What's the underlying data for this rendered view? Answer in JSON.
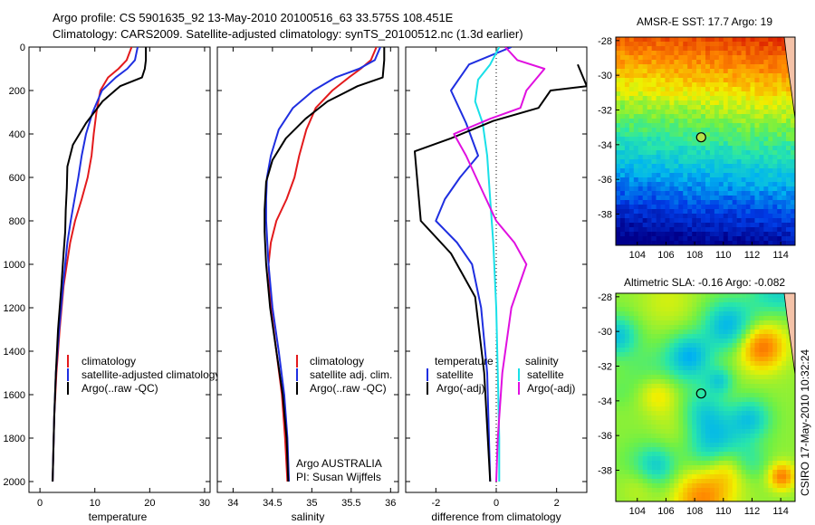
{
  "title": {
    "line1": "Argo profile: CS 5901635_92 13-May-2010 20100516_63 33.575S 108.451E",
    "line2": "Climatology: CARS2009. Satellite-adjusted climatology: synTS_20100512.nc (1.3d earlier)"
  },
  "credit": "CSIRO 17-May-2010 10:32:24",
  "colors": {
    "climatology": "#e31a1c",
    "satellite": "#1f2fe0",
    "argo": "#000000",
    "salinity_diff": "#e010e0",
    "salinity_sat": "#19e0e8"
  },
  "chart_data": [
    {
      "type": "line",
      "xlabel": "temperature",
      "xlim": [
        -2,
        31
      ],
      "ylim": [
        0,
        2050
      ],
      "xticks": [
        "0",
        "10",
        "20",
        "30"
      ],
      "yticks": [
        "0",
        "200",
        "400",
        "600",
        "800",
        "1000",
        "1200",
        "1400",
        "1600",
        "1800",
        "2000"
      ],
      "legend": [
        "climatology",
        "satellite-adjusted climatology",
        "Argo(..raw -QC)"
      ],
      "series": [
        {
          "name": "climatology",
          "x": [
            16.7,
            15.8,
            14.3,
            12.4,
            11.0,
            10.3,
            9.8,
            9.4,
            8.7,
            7.6,
            6.4,
            5.5,
            4.9,
            4.3,
            3.6,
            3.0,
            2.6,
            2.4,
            2.3
          ],
          "y": [
            0,
            60,
            100,
            140,
            200,
            300,
            400,
            500,
            600,
            700,
            800,
            900,
            1000,
            1100,
            1300,
            1500,
            1700,
            1900,
            2000
          ]
        },
        {
          "name": "satellite-adjusted climatology",
          "x": [
            17.8,
            17.3,
            15.9,
            13.8,
            11.3,
            9.6,
            8.4,
            7.6,
            7.0,
            6.3,
            5.6,
            5.0,
            4.6,
            4.2,
            3.5,
            2.9,
            2.6,
            2.4,
            2.3
          ],
          "y": [
            0,
            60,
            100,
            140,
            200,
            300,
            400,
            500,
            600,
            700,
            800,
            900,
            1000,
            1100,
            1300,
            1500,
            1700,
            1900,
            2000
          ]
        },
        {
          "name": "Argo(..raw -QC)",
          "x": [
            19.3,
            19.3,
            19.1,
            18.6,
            14.6,
            11.4,
            8.4,
            6.0,
            5.0,
            4.9,
            4.7,
            4.6,
            4.3,
            3.9,
            3.3,
            2.9,
            2.6,
            2.4,
            2.3
          ],
          "y": [
            0,
            60,
            100,
            140,
            180,
            250,
            350,
            450,
            550,
            650,
            750,
            850,
            950,
            1100,
            1300,
            1500,
            1700,
            1900,
            2000
          ]
        }
      ]
    },
    {
      "type": "line",
      "xlabel": "salinity",
      "xlim": [
        33.8,
        36.1
      ],
      "ylim": [
        0,
        2050
      ],
      "xticks": [
        "34",
        "34.5",
        "35",
        "35.5",
        "36"
      ],
      "legend": [
        "climatology",
        "satellite adj. clim.",
        "Argo(..raw -QC)"
      ],
      "annotation": [
        "Argo AUSTRALIA",
        "PI: Susan Wijffels"
      ],
      "series": [
        {
          "name": "climatology",
          "x": [
            35.82,
            35.75,
            35.62,
            35.47,
            35.26,
            35.05,
            34.93,
            34.84,
            34.78,
            34.68,
            34.55,
            34.48,
            34.45,
            34.48,
            34.55,
            34.62,
            34.66,
            34.69
          ],
          "y": [
            0,
            60,
            100,
            140,
            200,
            280,
            380,
            500,
            600,
            700,
            800,
            900,
            1000,
            1200,
            1400,
            1600,
            1800,
            2000
          ]
        },
        {
          "name": "satellite adj. clim.",
          "x": [
            35.87,
            35.8,
            35.6,
            35.3,
            35.02,
            34.76,
            34.58,
            34.48,
            34.43,
            34.42,
            34.42,
            34.45,
            34.5,
            34.58,
            34.65,
            34.69,
            34.71
          ],
          "y": [
            0,
            60,
            100,
            140,
            200,
            280,
            380,
            500,
            600,
            700,
            800,
            1000,
            1200,
            1400,
            1600,
            1800,
            2000
          ]
        },
        {
          "name": "Argo(..raw -QC)",
          "x": [
            35.92,
            35.92,
            35.9,
            35.58,
            35.2,
            34.92,
            34.67,
            34.5,
            34.42,
            34.4,
            34.4,
            34.42,
            34.47,
            34.55,
            34.63,
            34.68,
            34.7
          ],
          "y": [
            0,
            60,
            140,
            180,
            250,
            330,
            420,
            520,
            620,
            750,
            850,
            1000,
            1200,
            1400,
            1600,
            1800,
            2000
          ]
        }
      ]
    },
    {
      "type": "line",
      "xlabel": "difference from climatology",
      "xlim": [
        -3,
        3
      ],
      "ylim": [
        0,
        2050
      ],
      "xticks": [
        "-2",
        "0",
        "2"
      ],
      "legend": {
        "temperature": [
          "temperature",
          "satellite",
          "Argo(-adj)"
        ],
        "salinity": [
          "salinity",
          "satellite",
          "Argo(-adj)"
        ]
      },
      "series": [
        {
          "name": "temperature satellite",
          "x": [
            0.5,
            -0.9,
            -1.5,
            -1.0,
            -0.6,
            -1.2,
            -1.7,
            -2.0,
            -1.3,
            -0.8,
            -0.5,
            -0.3,
            -0.2
          ],
          "y": [
            0,
            80,
            200,
            350,
            500,
            600,
            700,
            800,
            900,
            1000,
            1200,
            1500,
            2000
          ]
        },
        {
          "name": "salinity satellite",
          "x": [
            0.1,
            -0.2,
            -0.6,
            -0.7,
            -0.45,
            -0.3,
            -0.2,
            -0.1,
            0.0,
            0.05,
            0.1,
            0.1
          ],
          "y": [
            0,
            80,
            150,
            250,
            350,
            500,
            700,
            900,
            1200,
            1500,
            1800,
            2000
          ]
        },
        {
          "name": "temperature Argo(-adj)",
          "x": [
            2.7,
            3.0,
            1.8,
            1.4,
            -0.1,
            -1.5,
            -2.7,
            -2.5,
            -1.5,
            -0.7,
            -0.4,
            -0.2
          ],
          "y": [
            80,
            180,
            200,
            280,
            340,
            420,
            480,
            800,
            950,
            1150,
            1500,
            2000
          ]
        },
        {
          "name": "salinity Argo(-adj)",
          "x": [
            0.3,
            0.7,
            1.6,
            1.3,
            1.0,
            0.8,
            -0.2,
            -1.4,
            -1.0,
            -0.5,
            0.0,
            0.6,
            1.0,
            0.5,
            0.2,
            0.05,
            0.0
          ],
          "y": [
            0,
            60,
            100,
            150,
            200,
            280,
            330,
            400,
            500,
            650,
            800,
            900,
            1000,
            1200,
            1500,
            1800,
            2000
          ]
        }
      ]
    },
    {
      "type": "heatmap",
      "title": "AMSR-E SST: 17.7 Argo: 19",
      "xticks": [
        "104",
        "106",
        "108",
        "110",
        "112",
        "114"
      ],
      "yticks": [
        "-28",
        "-30",
        "-32",
        "-34",
        "-36",
        "-38"
      ],
      "xlim": [
        102.5,
        115
      ],
      "ylim": [
        -39.8,
        -27.8
      ],
      "marker": {
        "lon": 108.451,
        "lat": -33.575
      }
    },
    {
      "type": "heatmap",
      "title": "Altimetric SLA: -0.16 Argo: -0.082",
      "xticks": [
        "104",
        "106",
        "108",
        "110",
        "112",
        "114"
      ],
      "yticks": [
        "-28",
        "-30",
        "-32",
        "-34",
        "-36",
        "-38"
      ],
      "xlim": [
        102.5,
        115
      ],
      "ylim": [
        -39.8,
        -27.8
      ],
      "marker": {
        "lon": 108.451,
        "lat": -33.575
      }
    }
  ]
}
